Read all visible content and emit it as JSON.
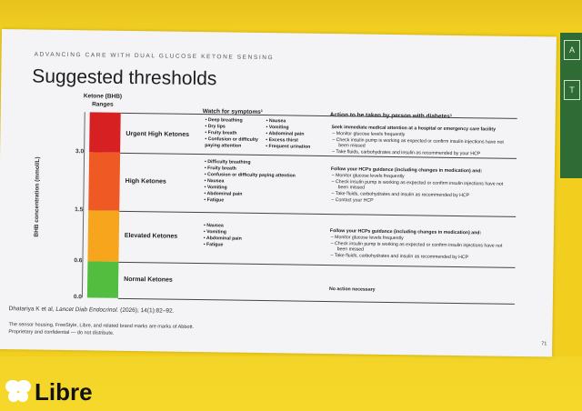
{
  "slide": {
    "eyebrow": "ADVANCING CARE WITH DUAL GLUCOSE KETONE SENSING",
    "title": "Suggested thresholds",
    "ketone_header": "Ketone (BHB) Ranges",
    "watch_header": "Watch for symptoms¹",
    "action_header": "Action to be taken by person with diabetes¹",
    "y_axis_label": "BHB concentration (mmol/L)",
    "ticks": [
      "3.0",
      "1.5",
      "0.6",
      "0.0"
    ],
    "levels": [
      {
        "name": "Urgent High Ketones",
        "color": "#d62021"
      },
      {
        "name": "High Ketones",
        "color": "#ef5a24"
      },
      {
        "name": "Elevated Ketones",
        "color": "#f6a51c"
      },
      {
        "name": "Normal Ketones",
        "color": "#52bd3e"
      }
    ],
    "symptoms": {
      "urgent_col1": [
        "Deep breathing",
        "Dry lips",
        "Fruity breath",
        "Confusion or difficulty paying attention"
      ],
      "urgent_col2": [
        "Nausea",
        "Vomiting",
        "Abdominal pain",
        "Excess thirst",
        "Frequent urination"
      ],
      "high": [
        "Difficulty breathing",
        "Fruity breath",
        "Confusion or difficulty paying attention",
        "Nausea",
        "Vomiting",
        "Abdominal pain",
        "Fatigue"
      ],
      "elevated": [
        "Nausea",
        "Vomiting",
        "Abdominal pain",
        "Fatigue"
      ]
    },
    "actions": {
      "urgent": {
        "head": "Seek immediate medical attention at a hospital or emergency care facility",
        "items": [
          "Monitor glucose levels frequently",
          "Check insulin pump is working as expected or confirm insulin injections have not been missed",
          "Take fluids, carbohydrates and insulin as recommended by your HCP"
        ]
      },
      "high": {
        "head": "Follow your HCPs guidance (including changes in medication) and:",
        "items": [
          "Monitor glucose levels frequently",
          "Check insulin pump is working as expected or confirm insulin injections have not been missed",
          "Take fluids, carbohydrates and insulin as recommended by HCP",
          "Contact your HCP"
        ]
      },
      "elevated": {
        "head": "Follow your HCPs guidance (including changes in medication) and:",
        "items": [
          "Monitor glucose levels frequently",
          "Check insulin pump is working as expected or confirm insulin injections have not been missed",
          "Take fluids, carbohydrates and insulin as recommended by HCP"
        ]
      },
      "normal": "No action necessary"
    },
    "citation_authors": "Dhatariya K et al, ",
    "citation_journal": "Lancet Diab Endocrinol.",
    "citation_rest": " (2026); 14(1):82–92.",
    "footnote_1": "The sensor housing, FreeStyle, Libre, and related brand marks are marks of Abbott.",
    "footnote_2": "Proprietary and confidential — do not distribute.",
    "page_number": "71"
  },
  "logo": {
    "word": "Libre"
  }
}
